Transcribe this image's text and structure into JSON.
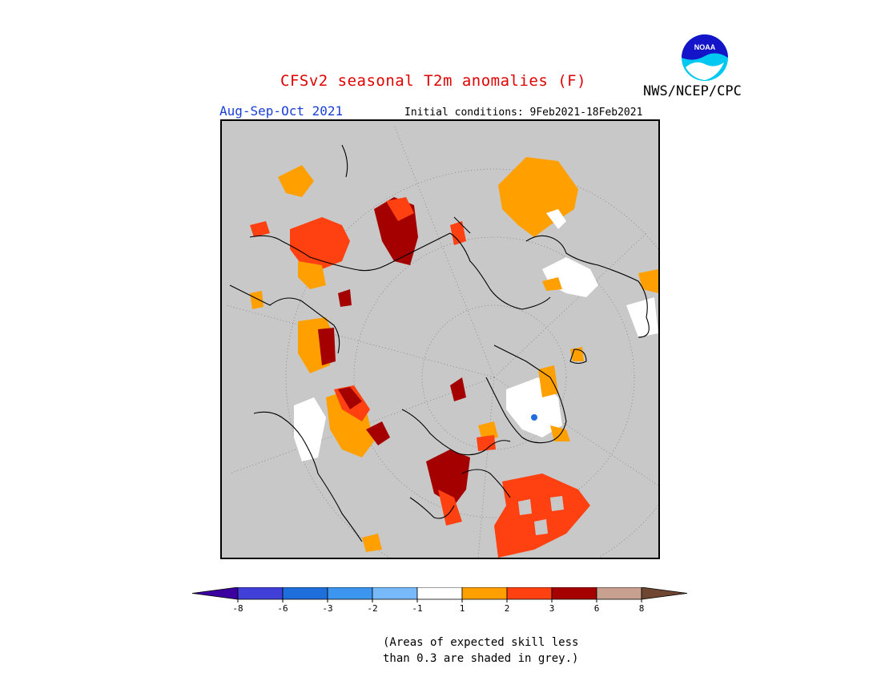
{
  "title": "CFSv2 seasonal T2m anomalies (F)",
  "agency": "NWS/NCEP/CPC",
  "logo_text": "NOAA",
  "season": "Aug-Sep-Oct 2021",
  "initial_conditions": "Initial conditions: 9Feb2021-18Feb2021",
  "note_line1": "(Areas of expected skill less",
  "note_line2": "than 0.3 are shaded in grey.)",
  "colors": {
    "masked_grey": "#c8c8c8",
    "title_red": "#e00000",
    "season_blue": "#1a3fd8"
  },
  "legend": {
    "bins": [
      {
        "color": "#3c00a0"
      },
      {
        "color": "#4040d8"
      },
      {
        "color": "#1e6fdc"
      },
      {
        "color": "#3c96f0"
      },
      {
        "color": "#78b9fa"
      },
      {
        "color": "#ffffff"
      },
      {
        "color": "#ffa000"
      },
      {
        "color": "#ff4010"
      },
      {
        "color": "#a50000"
      },
      {
        "color": "#c8a090"
      },
      {
        "color": "#6e4632"
      }
    ],
    "ticks": [
      "-8",
      "-6",
      "-3",
      "-2",
      "-1",
      "1",
      "2",
      "3",
      "6",
      "8"
    ]
  },
  "regions": [
    {
      "name": "eastern-europe-russia",
      "color": "#ff4010"
    },
    {
      "name": "scandinavia",
      "color": "#a50000"
    },
    {
      "name": "east-siberia",
      "color": "#ffa000"
    },
    {
      "name": "greenland",
      "color": "#ffffff"
    },
    {
      "name": "canada-hudson",
      "color": "#a50000"
    },
    {
      "name": "north-atlantic",
      "color": "#ff4010"
    }
  ]
}
